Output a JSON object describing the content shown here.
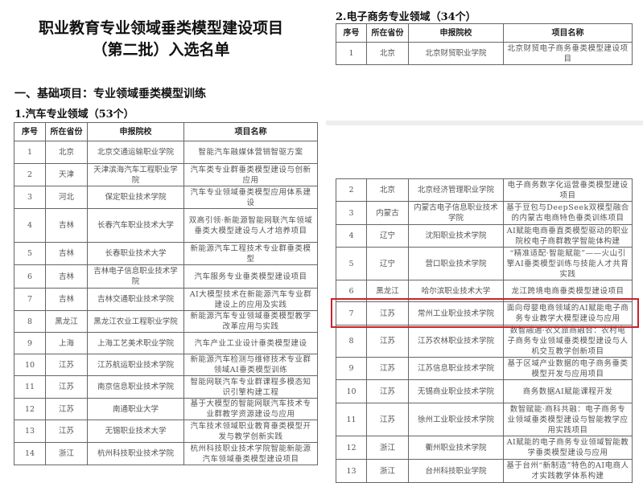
{
  "doc": {
    "title_line1": "职业教育专业领域垂类模型建设项目",
    "title_line2": "（第二批）入选名单",
    "section": "一、基础项目：专业领域垂类模型训练"
  },
  "auto": {
    "heading": "1.汽车专业领域（53个）",
    "headers": [
      "序号",
      "所在省份",
      "申报院校",
      "项目名称"
    ],
    "rows": [
      [
        "1",
        "北京",
        "北京交通运输职业学院",
        "智能汽车融媒体营销智驱方案"
      ],
      [
        "2",
        "天津",
        "天津滨海汽车工程职业学院",
        "汽车类专业群垂类模型建设与创新应用"
      ],
      [
        "3",
        "河北",
        "保定职业技术学院",
        "汽车专业领域垂类模型应用体系建设"
      ],
      [
        "4",
        "吉林",
        "长春汽车职业技术大学",
        "双高引领·新能源智能网联汽车领域垂类大模型建设与人才培养项目"
      ],
      [
        "5",
        "吉林",
        "长春职业技术大学",
        "新能源汽车工程技术专业群垂类模型"
      ],
      [
        "6",
        "吉林",
        "吉林电子信息职业技术学院",
        "汽车服务专业垂类模型建设项目"
      ],
      [
        "7",
        "吉林",
        "吉林交通职业技术学院",
        "AI大模型技术在新能源汽车专业群建设上的应用及实践"
      ],
      [
        "8",
        "黑龙江",
        "黑龙江农业工程职业学院",
        "新能源汽车专业领域垂类模型教学改革应用与实践"
      ],
      [
        "9",
        "上海",
        "上海工艺美术职业学院",
        "汽车产业工业设计垂类模型建设"
      ],
      [
        "10",
        "江苏",
        "江苏航运职业技术学院",
        "新能源汽车检测与维修技术专业群领域AI垂类模型训练"
      ],
      [
        "11",
        "江苏",
        "南京信息职业技术学院",
        "智能网联汽车专业群课程多模态知识引擎构建工程"
      ],
      [
        "12",
        "江苏",
        "南通职业大学",
        "基于大模型的智能网联汽车技术专业群教学资源建设与应用"
      ],
      [
        "13",
        "江苏",
        "无锡职业技术大学",
        "汽车技术领域职业教育垂类模型开发与教学创新实践"
      ],
      [
        "14",
        "浙江",
        "杭州科技职业技术学院",
        "杭州科技职业技术学院智能新能源汽车领域垂类模型建设项目"
      ]
    ]
  },
  "ecom": {
    "heading": "2.电子商务专业领域（34个）",
    "headers": [
      "序号",
      "所在省份",
      "申报院校",
      "项目名称"
    ],
    "rows_top": [
      [
        "1",
        "北京",
        "北京财贸职业学院",
        "北京财贸电子商务垂类模型建设项目"
      ]
    ],
    "rows": [
      [
        "2",
        "北京",
        "北京经济管理职业学院",
        "电子商务数字化运营垂类模型建设项目"
      ],
      [
        "3",
        "内蒙古",
        "内蒙古电子信息职业技术学院",
        "基于豆包与DeepSeek双模型融合的内蒙古电商特色垂类训练项目"
      ],
      [
        "4",
        "辽宁",
        "沈阳职业技术学院",
        "AI赋能电商垂直类模型驱动的职业院校电子商群教学智能体构建"
      ],
      [
        "5",
        "辽宁",
        "营口职业技术学院",
        "“精准适配·智能赋能”——火山引擎AI垂类模型训练与技能人才共育实践"
      ],
      [
        "6",
        "黑龙江",
        "哈尔滨职业技术大学",
        "龙江跨境电商垂类模型建设项目"
      ],
      [
        "7",
        "江苏",
        "常州工业职业技术学院",
        "面向母婴电商领域的AI赋能电子商务专业教学大模型建设与应用"
      ],
      [
        "8",
        "江苏",
        "江苏农林职业技术学院",
        "数智融通·农文旅商融合：农村电子商务专业领域垂类模型建设与人机交互教学创新项目"
      ],
      [
        "9",
        "江苏",
        "江苏信息职业技术学院",
        "基于区域产业数据的电子商务垂类模型开发与应用项目"
      ],
      [
        "10",
        "江苏",
        "无锡商业职业技术学院",
        "商务数据AI赋能课程开发"
      ],
      [
        "11",
        "江苏",
        "徐州工业职业技术学院",
        "数智赋能·商科共融：电子商务专业领域垂类模型建设与智能教学应用实践项目"
      ],
      [
        "12",
        "浙江",
        "衢州职业技术学院",
        "AI赋能的电子商务专业领域智能教学垂类模型建设与应用"
      ],
      [
        "13",
        "浙江",
        "台州科技职业学院",
        "基于台州“新制造”特色的AI电商人才实践教学体系构建"
      ]
    ],
    "highlighted_row": "7",
    "highlight_color": "#c8232c"
  }
}
